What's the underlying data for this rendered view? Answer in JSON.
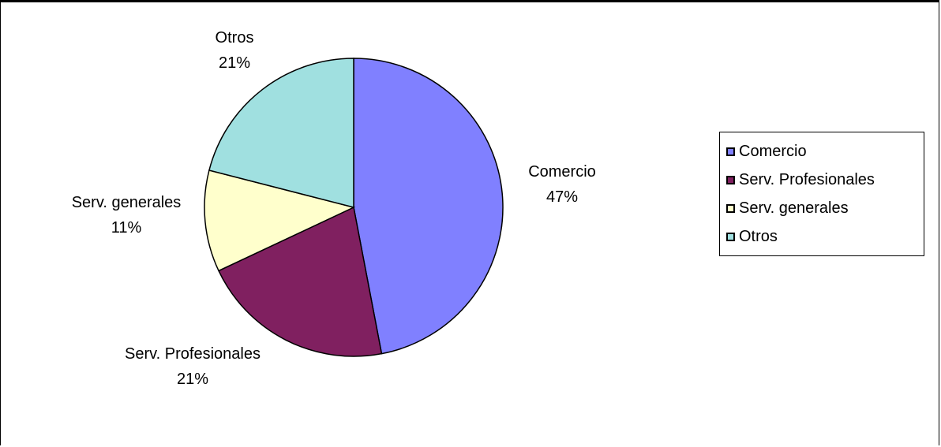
{
  "chart_data": {
    "type": "pie",
    "categories": [
      "Comercio",
      "Serv. Profesionales",
      "Serv. generales",
      "Otros"
    ],
    "values": [
      47,
      21,
      11,
      21
    ],
    "labels": [
      "47%",
      "21%",
      "11%",
      "21%"
    ],
    "colors": [
      "#8080FF",
      "#802060",
      "#FFFFCC",
      "#A0E0E0"
    ],
    "start_angle_deg": 0,
    "direction": "clockwise",
    "legend_position": "right"
  }
}
